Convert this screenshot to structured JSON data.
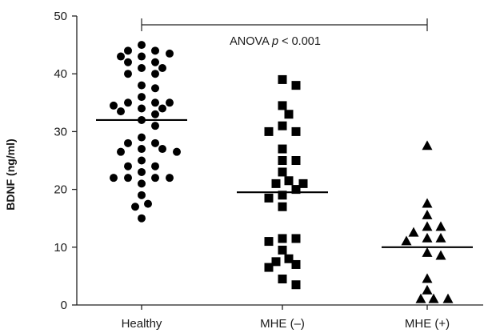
{
  "chart_data": {
    "type": "scatter",
    "title": "",
    "xlabel": "",
    "ylabel": "BDNF (ng/ml)",
    "ylim": [
      0,
      50
    ],
    "yticks": [
      0,
      10,
      20,
      30,
      40,
      50
    ],
    "grid": false,
    "categories": [
      "Healthy",
      "MHE (–)",
      "MHE (+)"
    ],
    "series": [
      {
        "category": "Healthy",
        "marker": "circle",
        "mean": 32,
        "values": [
          45,
          44,
          44,
          43.5,
          43,
          43,
          42,
          42,
          41,
          41,
          40,
          40,
          38,
          37.5,
          36,
          35,
          35,
          35,
          34,
          34,
          34.5,
          33.5,
          33,
          32,
          31,
          29,
          28,
          28,
          27,
          27,
          26.5,
          26.5,
          25,
          24,
          24,
          23,
          22,
          22,
          22,
          22,
          21,
          19,
          17.5,
          17,
          15
        ]
      },
      {
        "category": "MHE (–)",
        "marker": "square",
        "mean": 19.5,
        "values": [
          39,
          38,
          34.5,
          33,
          31,
          30,
          30,
          27,
          25,
          25,
          23,
          21.5,
          21,
          21,
          20,
          19,
          18.5,
          17,
          11.5,
          11.5,
          11,
          9.5,
          8,
          7.5,
          7,
          6.5,
          4.5,
          3.5
        ]
      },
      {
        "category": "MHE (+)",
        "marker": "triangle",
        "mean": 10,
        "values": [
          27.5,
          17.5,
          15.5,
          13.5,
          13.5,
          12.5,
          11.5,
          11.5,
          11,
          9,
          8.5,
          4.5,
          2.5,
          1,
          1,
          1
        ]
      }
    ],
    "annotations": [
      {
        "label": "ANOVA",
        "italic": "p",
        "suffix": "< 0.001"
      }
    ]
  }
}
